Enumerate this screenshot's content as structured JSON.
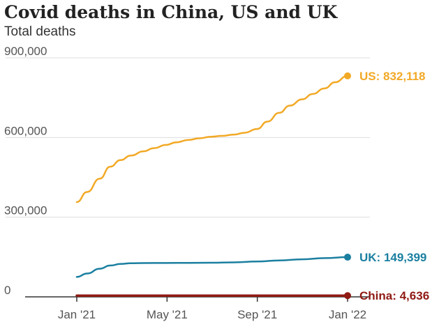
{
  "title": "Covid deaths in China, US and UK",
  "subtitle": "Total deaths",
  "colors": {
    "us": "#f2a926",
    "uk": "#1b7fa0",
    "china": "#8f1a14",
    "grid": "#dddddd",
    "axis": "#333333",
    "tick_text": "#555555"
  },
  "chart_data": {
    "type": "line",
    "title": "Covid deaths in China, US and UK",
    "subtitle": "Total deaths",
    "xlabel": "",
    "ylabel": "",
    "x_tick_labels": [
      "Jan '21",
      "May '21",
      "Sep '21",
      "Jan '22"
    ],
    "x_range": [
      "2021-01-01",
      "2022-01-01"
    ],
    "ylim": [
      0,
      900000
    ],
    "y_ticks": [
      0,
      300000,
      600000,
      900000
    ],
    "y_tick_labels": [
      "0",
      "300,000",
      "600,000",
      "900,000"
    ],
    "grid": "horizontal",
    "legend": "end labels",
    "series": [
      {
        "key": "us",
        "end_label": "US: 832,118",
        "color": "#f2a926",
        "points": [
          [
            "2021-01-01",
            357000
          ],
          [
            "2021-01-15",
            395000
          ],
          [
            "2021-02-01",
            445000
          ],
          [
            "2021-02-15",
            490000
          ],
          [
            "2021-03-01",
            515000
          ],
          [
            "2021-03-15",
            532000
          ],
          [
            "2021-04-01",
            548000
          ],
          [
            "2021-04-15",
            560000
          ],
          [
            "2021-05-01",
            572000
          ],
          [
            "2021-05-15",
            582000
          ],
          [
            "2021-06-01",
            591000
          ],
          [
            "2021-06-15",
            597000
          ],
          [
            "2021-07-01",
            603000
          ],
          [
            "2021-07-15",
            606000
          ],
          [
            "2021-08-01",
            611000
          ],
          [
            "2021-08-15",
            618000
          ],
          [
            "2021-09-01",
            632000
          ],
          [
            "2021-09-15",
            660000
          ],
          [
            "2021-10-01",
            693000
          ],
          [
            "2021-10-15",
            720000
          ],
          [
            "2021-11-01",
            744000
          ],
          [
            "2021-11-15",
            764000
          ],
          [
            "2021-12-01",
            785000
          ],
          [
            "2021-12-15",
            808000
          ],
          [
            "2022-01-01",
            832118
          ]
        ]
      },
      {
        "key": "uk",
        "end_label": "UK: 149,399",
        "color": "#1b7fa0",
        "points": [
          [
            "2021-01-01",
            75000
          ],
          [
            "2021-01-15",
            88000
          ],
          [
            "2021-02-01",
            106000
          ],
          [
            "2021-02-15",
            118000
          ],
          [
            "2021-03-01",
            124000
          ],
          [
            "2021-03-15",
            126500
          ],
          [
            "2021-04-01",
            127200
          ],
          [
            "2021-05-01",
            127700
          ],
          [
            "2021-06-01",
            128000
          ],
          [
            "2021-07-01",
            128500
          ],
          [
            "2021-08-01",
            130000
          ],
          [
            "2021-09-01",
            133000
          ],
          [
            "2021-10-01",
            137000
          ],
          [
            "2021-11-01",
            141500
          ],
          [
            "2021-12-01",
            146000
          ],
          [
            "2022-01-01",
            149399
          ]
        ]
      },
      {
        "key": "china",
        "end_label": "China: 4,636",
        "color": "#8f1a14",
        "points": [
          [
            "2021-01-01",
            4635
          ],
          [
            "2022-01-01",
            4636
          ]
        ]
      }
    ]
  }
}
